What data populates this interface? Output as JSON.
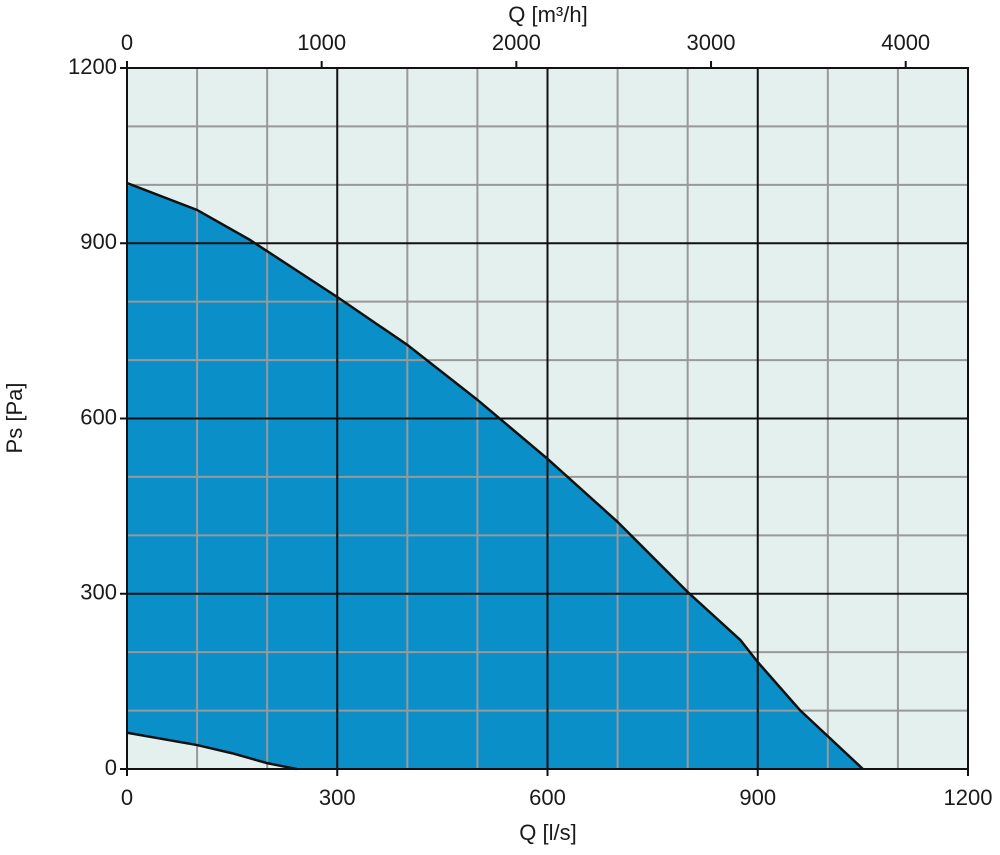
{
  "chart_data": {
    "type": "area",
    "xlabel": "Q [l/s]",
    "ylabel": "Ps [Pa]",
    "x2label": "Q [m³/h]",
    "xlim": [
      0,
      1200
    ],
    "ylim": [
      0,
      1200
    ],
    "x2lim": [
      0,
      4320
    ],
    "xticks": [
      0,
      300,
      600,
      900,
      1200
    ],
    "yticks": [
      0,
      300,
      600,
      900,
      1200
    ],
    "x2ticks": [
      0,
      1000,
      2000,
      3000,
      4000
    ],
    "xminorticks": [
      100,
      200,
      400,
      500,
      700,
      800,
      1000,
      1100
    ],
    "yminorticks": [
      100,
      200,
      400,
      500,
      700,
      800,
      1000,
      1100
    ],
    "grid": true,
    "background": "#e3f0ed",
    "color": "#0a8fc9",
    "curves": [
      {
        "x": [
          0,
          100,
          175,
          300,
          400,
          500,
          600,
          700,
          800,
          875,
          900,
          960,
          1050
        ],
        "y": [
          1003,
          957,
          906,
          808,
          726,
          632,
          531,
          423,
          303,
          221,
          183,
          101,
          0
        ]
      },
      {
        "x": [
          0,
          100,
          150,
          200,
          242
        ],
        "y": [
          62,
          41,
          27,
          10,
          0
        ]
      }
    ]
  }
}
